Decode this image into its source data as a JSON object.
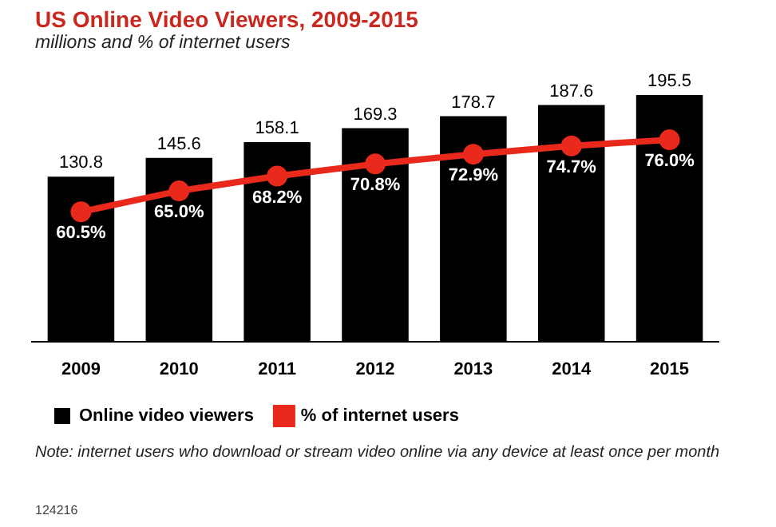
{
  "chart_data": {
    "type": "bar",
    "title": "US Online Video Viewers, 2009-2015",
    "subtitle": "millions and % of internet users",
    "categories": [
      "2009",
      "2010",
      "2011",
      "2012",
      "2013",
      "2014",
      "2015"
    ],
    "series": [
      {
        "name": "Online video viewers",
        "color": "#000000",
        "values": [
          130.8,
          145.6,
          158.1,
          169.3,
          178.7,
          187.6,
          195.5
        ],
        "value_labels": [
          "130.8",
          "145.6",
          "158.1",
          "169.3",
          "178.7",
          "187.6",
          "195.5"
        ]
      },
      {
        "name": "% of internet users",
        "type": "line",
        "axis": "y2",
        "color": "#e8291c",
        "values": [
          60.5,
          65.0,
          68.2,
          70.8,
          72.9,
          74.7,
          76.0
        ],
        "value_labels": [
          "60.5%",
          "65.0%",
          "68.2%",
          "70.8%",
          "72.9%",
          "74.7%",
          "76.0%"
        ]
      }
    ],
    "legend": "bottom left",
    "grid": false,
    "tick_labels": "x",
    "marker": "circle",
    "annotations": [
      "Note: internet users who download or stream video online via any device at least once per month",
      "124216"
    ]
  }
}
